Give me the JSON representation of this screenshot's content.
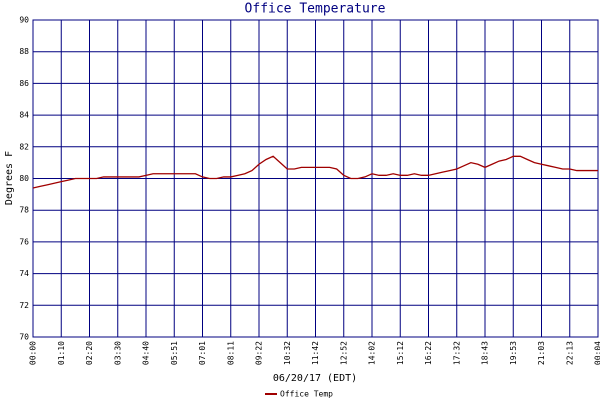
{
  "chart_data": {
    "type": "line",
    "title": "Office Temperature",
    "x_label": "06/20/17 (EDT)",
    "y_label": "Degrees F",
    "categories": [
      "00:00",
      null,
      null,
      null,
      "01:10",
      null,
      null,
      null,
      "02:20",
      null,
      null,
      null,
      "03:30",
      null,
      null,
      null,
      "04:40",
      null,
      null,
      null,
      "05:51",
      null,
      null,
      null,
      "07:01",
      null,
      null,
      null,
      "08:11",
      null,
      null,
      null,
      "09:22",
      null,
      null,
      null,
      "10:32",
      null,
      null,
      null,
      "11:42",
      null,
      null,
      null,
      "12:52",
      null,
      null,
      null,
      "14:02",
      null,
      null,
      null,
      "15:12",
      null,
      null,
      null,
      "16:22",
      null,
      null,
      null,
      "17:32",
      null,
      null,
      null,
      "18:43",
      null,
      null,
      null,
      "19:53",
      null,
      null,
      null,
      "21:03",
      null,
      null,
      null,
      "22:13",
      null,
      null,
      null,
      "00:04"
    ],
    "series": [
      {
        "name": "Office Temp",
        "color": "#a00000",
        "values": [
          79.4,
          79.5,
          79.6,
          79.7,
          79.8,
          79.9,
          80.0,
          80.0,
          80.0,
          80.0,
          80.1,
          80.1,
          80.1,
          80.1,
          80.1,
          80.1,
          80.2,
          80.3,
          80.3,
          80.3,
          80.3,
          80.3,
          80.3,
          80.3,
          80.1,
          80.0,
          80.0,
          80.1,
          80.1,
          80.2,
          80.3,
          80.5,
          80.9,
          81.2,
          81.4,
          81.0,
          80.6,
          80.6,
          80.7,
          80.7,
          80.7,
          80.7,
          80.7,
          80.6,
          80.2,
          80.0,
          80.0,
          80.1,
          80.3,
          80.2,
          80.2,
          80.3,
          80.2,
          80.2,
          80.3,
          80.2,
          80.2,
          80.3,
          80.4,
          80.5,
          80.6,
          80.8,
          81.0,
          80.9,
          80.7,
          80.9,
          81.1,
          81.2,
          81.4,
          81.4,
          81.2,
          81.0,
          80.9,
          80.8,
          80.7,
          80.6,
          80.6,
          80.5,
          80.5,
          80.5,
          80.5
        ]
      }
    ],
    "ylim": [
      70,
      90
    ],
    "yticks": [
      70,
      72,
      74,
      76,
      78,
      80,
      82,
      84,
      86,
      88,
      90
    ],
    "grid": true,
    "grid_color": "#000080"
  }
}
